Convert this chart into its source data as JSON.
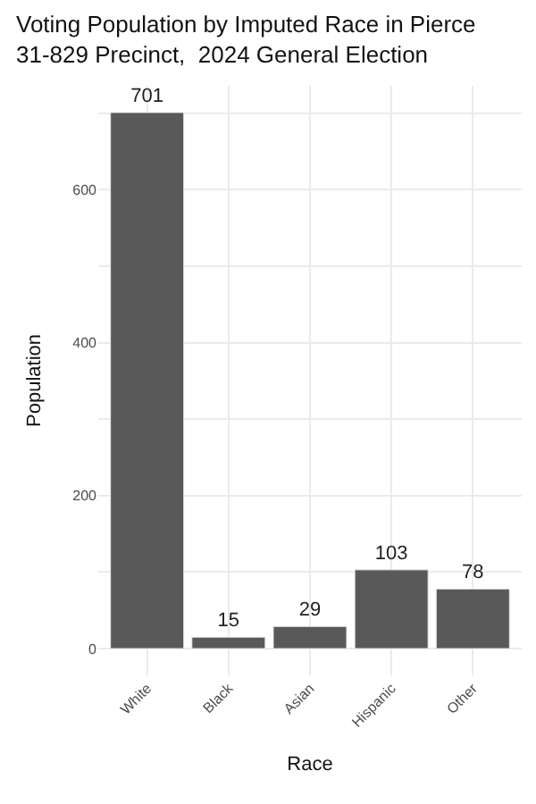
{
  "chart_data": {
    "type": "bar",
    "title": "Voting Population by Imputed Race in Pierce\n31-829 Precinct,  2024 General Election",
    "xlabel": "Race",
    "ylabel": "Population",
    "categories": [
      "White",
      "Black",
      "Asian",
      "Hispanic",
      "Other"
    ],
    "values": [
      701,
      15,
      29,
      103,
      78
    ],
    "color": "#595959",
    "ylim": [
      -35,
      736
    ],
    "yticks": [
      0,
      {
        "value": 100,
        "label": null
      },
      200,
      {
        "value": 300,
        "label": null
      },
      400,
      {
        "value": 500,
        "label": null
      },
      600,
      {
        "value": 700,
        "label": null
      }
    ],
    "grid": true,
    "data_labels": true
  }
}
